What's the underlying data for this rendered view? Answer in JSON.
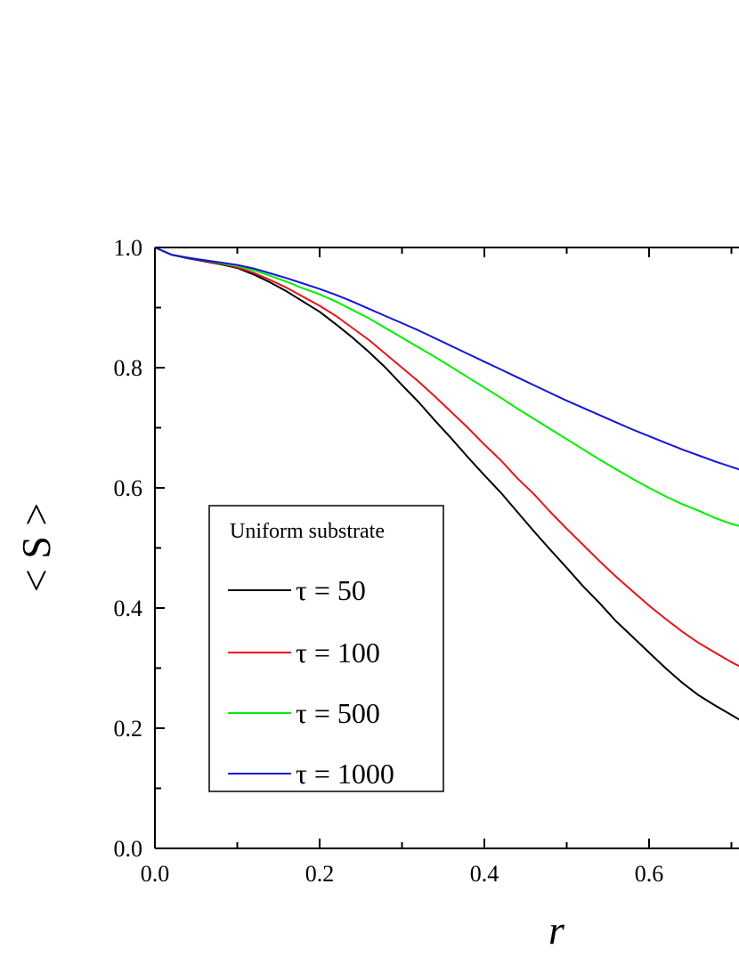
{
  "chart_data": {
    "type": "line",
    "xlabel": "r",
    "ylabel": "< S >",
    "xlim": [
      0.0,
      0.72
    ],
    "ylim": [
      0.0,
      1.0
    ],
    "xticks": [
      "0.0",
      "0.2",
      "0.4",
      "0.6"
    ],
    "yticks": [
      "0.0",
      "0.2",
      "0.4",
      "0.6",
      "0.8",
      "1.0"
    ],
    "grid": false,
    "legend": {
      "title": "Uniform substrate",
      "placement": "bottom-left"
    },
    "series": [
      {
        "name": "τ = 50",
        "color": "#000000",
        "x": [
          0.0,
          0.02,
          0.04,
          0.06,
          0.08,
          0.1,
          0.12,
          0.14,
          0.16,
          0.18,
          0.2,
          0.22,
          0.24,
          0.26,
          0.28,
          0.3,
          0.32,
          0.34,
          0.36,
          0.38,
          0.4,
          0.42,
          0.44,
          0.46,
          0.48,
          0.5,
          0.52,
          0.54,
          0.56,
          0.58,
          0.6,
          0.62,
          0.64,
          0.66,
          0.68,
          0.7,
          0.72
        ],
        "y": [
          1.0,
          0.988,
          0.982,
          0.977,
          0.972,
          0.966,
          0.955,
          0.942,
          0.927,
          0.91,
          0.893,
          0.872,
          0.85,
          0.826,
          0.8,
          0.771,
          0.743,
          0.712,
          0.682,
          0.651,
          0.621,
          0.592,
          0.56,
          0.528,
          0.497,
          0.467,
          0.436,
          0.408,
          0.378,
          0.352,
          0.326,
          0.3,
          0.276,
          0.255,
          0.238,
          0.222,
          0.206
        ]
      },
      {
        "name": "τ = 100",
        "color": "#e8131a",
        "x": [
          0.0,
          0.02,
          0.04,
          0.06,
          0.08,
          0.1,
          0.12,
          0.14,
          0.16,
          0.18,
          0.2,
          0.22,
          0.24,
          0.26,
          0.28,
          0.3,
          0.32,
          0.34,
          0.36,
          0.38,
          0.4,
          0.42,
          0.44,
          0.46,
          0.48,
          0.5,
          0.52,
          0.54,
          0.56,
          0.58,
          0.6,
          0.62,
          0.64,
          0.66,
          0.68,
          0.7,
          0.72
        ],
        "y": [
          1.0,
          0.988,
          0.983,
          0.978,
          0.973,
          0.967,
          0.958,
          0.946,
          0.933,
          0.918,
          0.903,
          0.886,
          0.866,
          0.846,
          0.823,
          0.8,
          0.777,
          0.752,
          0.726,
          0.7,
          0.672,
          0.646,
          0.616,
          0.59,
          0.56,
          0.532,
          0.505,
          0.478,
          0.452,
          0.428,
          0.404,
          0.382,
          0.361,
          0.342,
          0.326,
          0.31,
          0.296
        ]
      },
      {
        "name": "τ = 500",
        "color": "#00ee00",
        "x": [
          0.0,
          0.02,
          0.04,
          0.06,
          0.08,
          0.1,
          0.12,
          0.14,
          0.16,
          0.18,
          0.2,
          0.22,
          0.24,
          0.26,
          0.28,
          0.3,
          0.32,
          0.34,
          0.36,
          0.38,
          0.4,
          0.42,
          0.44,
          0.46,
          0.48,
          0.5,
          0.52,
          0.54,
          0.56,
          0.58,
          0.6,
          0.62,
          0.64,
          0.66,
          0.68,
          0.7,
          0.72
        ],
        "y": [
          1.0,
          0.988,
          0.983,
          0.979,
          0.974,
          0.969,
          0.962,
          0.953,
          0.943,
          0.932,
          0.922,
          0.91,
          0.896,
          0.882,
          0.866,
          0.85,
          0.834,
          0.818,
          0.801,
          0.784,
          0.767,
          0.75,
          0.732,
          0.715,
          0.698,
          0.681,
          0.664,
          0.647,
          0.631,
          0.615,
          0.6,
          0.586,
          0.573,
          0.562,
          0.55,
          0.54,
          0.533
        ]
      },
      {
        "name": "τ = 1000",
        "color": "#1515d8",
        "x": [
          0.0,
          0.02,
          0.04,
          0.06,
          0.08,
          0.1,
          0.12,
          0.14,
          0.16,
          0.18,
          0.2,
          0.22,
          0.24,
          0.26,
          0.28,
          0.3,
          0.32,
          0.34,
          0.36,
          0.38,
          0.4,
          0.42,
          0.44,
          0.46,
          0.48,
          0.5,
          0.52,
          0.54,
          0.56,
          0.58,
          0.6,
          0.62,
          0.64,
          0.66,
          0.68,
          0.7,
          0.72
        ],
        "y": [
          1.0,
          0.988,
          0.983,
          0.979,
          0.975,
          0.971,
          0.965,
          0.957,
          0.949,
          0.94,
          0.931,
          0.921,
          0.91,
          0.898,
          0.886,
          0.874,
          0.862,
          0.849,
          0.836,
          0.823,
          0.81,
          0.797,
          0.784,
          0.771,
          0.758,
          0.745,
          0.733,
          0.721,
          0.709,
          0.697,
          0.686,
          0.675,
          0.664,
          0.654,
          0.644,
          0.635,
          0.626
        ]
      }
    ]
  }
}
